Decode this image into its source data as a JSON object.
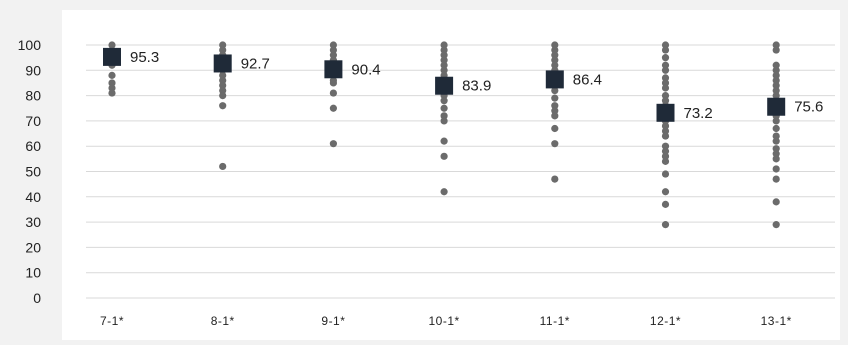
{
  "chart_data": {
    "type": "scatter",
    "title": "",
    "xlabel": "",
    "ylabel": "",
    "ylim": [
      0,
      100
    ],
    "yticks": [
      0,
      10,
      20,
      30,
      40,
      50,
      60,
      70,
      80,
      90,
      100
    ],
    "grid": true,
    "legend": "none",
    "categories": [
      "7-1*",
      "8-1*",
      "9-1*",
      "10-1*",
      "11-1*",
      "12-1*",
      "13-1*"
    ],
    "means": [
      95.3,
      92.7,
      90.4,
      83.9,
      86.4,
      73.2,
      75.6
    ],
    "mean_labels": [
      "95.3",
      "92.7",
      "90.4",
      "83.9",
      "86.4",
      "73.2",
      "75.6"
    ],
    "points": [
      [
        100,
        98,
        96,
        94,
        92,
        88,
        85,
        83,
        81
      ],
      [
        100,
        98,
        96,
        94,
        92,
        90,
        88,
        86,
        84,
        82,
        80,
        76,
        52
      ],
      [
        100,
        98,
        96,
        94,
        92,
        90,
        88,
        86,
        85,
        81,
        75,
        61
      ],
      [
        100,
        98,
        96,
        94,
        92,
        90,
        88,
        86,
        84,
        82,
        80,
        78,
        75,
        72,
        70,
        62,
        56,
        42
      ],
      [
        100,
        98,
        96,
        94,
        92,
        90,
        88,
        86,
        84,
        82,
        79,
        76,
        74,
        72,
        67,
        61,
        47
      ],
      [
        100,
        98,
        95,
        92,
        90,
        87,
        85,
        83,
        80,
        78,
        76,
        74,
        72,
        70,
        68,
        66,
        64,
        60,
        58,
        56,
        54,
        49,
        42,
        37,
        29
      ],
      [
        100,
        98,
        92,
        90,
        88,
        86,
        84,
        82,
        80,
        78,
        76,
        74,
        72,
        70,
        67,
        64,
        62,
        59,
        57,
        55,
        51,
        47,
        38,
        29
      ]
    ],
    "point_color": "#6b6b6b",
    "mean_color": "#1f2a38",
    "grid_color": "#d9d9d9"
  }
}
